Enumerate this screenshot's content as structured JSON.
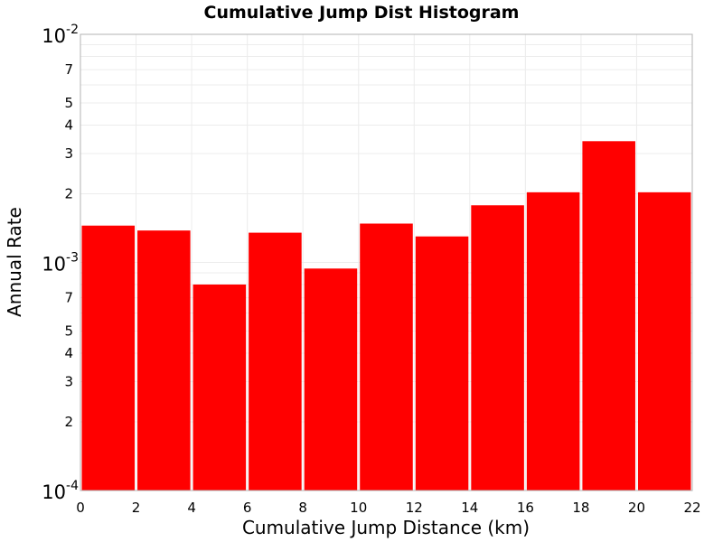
{
  "chart_data": {
    "type": "bar",
    "title": "Cumulative Jump Dist Histogram",
    "xlabel": "Cumulative Jump Distance (km)",
    "ylabel": "Annual Rate",
    "xlim": [
      0,
      22
    ],
    "ylim": [
      0.0001,
      0.01
    ],
    "yscale": "log",
    "grid": true,
    "bar_color": "#ff0000",
    "x_ticks": [
      "0",
      "2",
      "4",
      "6",
      "8",
      "10",
      "12",
      "14",
      "16",
      "18",
      "20",
      "22"
    ],
    "y_major_ticks": [
      {
        "value": 0.0001,
        "base": "10",
        "exp": "-4"
      },
      {
        "value": 0.001,
        "base": "10",
        "exp": "-3"
      },
      {
        "value": 0.01,
        "base": "10",
        "exp": "-2"
      }
    ],
    "y_minor_labels": [
      {
        "value": 0.0002,
        "label": "2"
      },
      {
        "value": 0.0003,
        "label": "3"
      },
      {
        "value": 0.0004,
        "label": "4"
      },
      {
        "value": 0.0005,
        "label": "5"
      },
      {
        "value": 0.0007,
        "label": "7"
      },
      {
        "value": 0.002,
        "label": "2"
      },
      {
        "value": 0.003,
        "label": "3"
      },
      {
        "value": 0.004,
        "label": "4"
      },
      {
        "value": 0.005,
        "label": "5"
      },
      {
        "value": 0.007,
        "label": "7"
      }
    ],
    "bins": [
      {
        "x0": 0,
        "x1": 2,
        "value": 0.00145
      },
      {
        "x0": 2,
        "x1": 4,
        "value": 0.00138
      },
      {
        "x0": 4,
        "x1": 6,
        "value": 0.0008
      },
      {
        "x0": 6,
        "x1": 8,
        "value": 0.00135
      },
      {
        "x0": 8,
        "x1": 10,
        "value": 0.00094
      },
      {
        "x0": 10,
        "x1": 12,
        "value": 0.00148
      },
      {
        "x0": 12,
        "x1": 14,
        "value": 0.0013
      },
      {
        "x0": 14,
        "x1": 16,
        "value": 0.00178
      },
      {
        "x0": 16,
        "x1": 18,
        "value": 0.00203
      },
      {
        "x0": 18,
        "x1": 20,
        "value": 0.0034
      },
      {
        "x0": 20,
        "x1": 22,
        "value": 0.00203
      }
    ]
  }
}
